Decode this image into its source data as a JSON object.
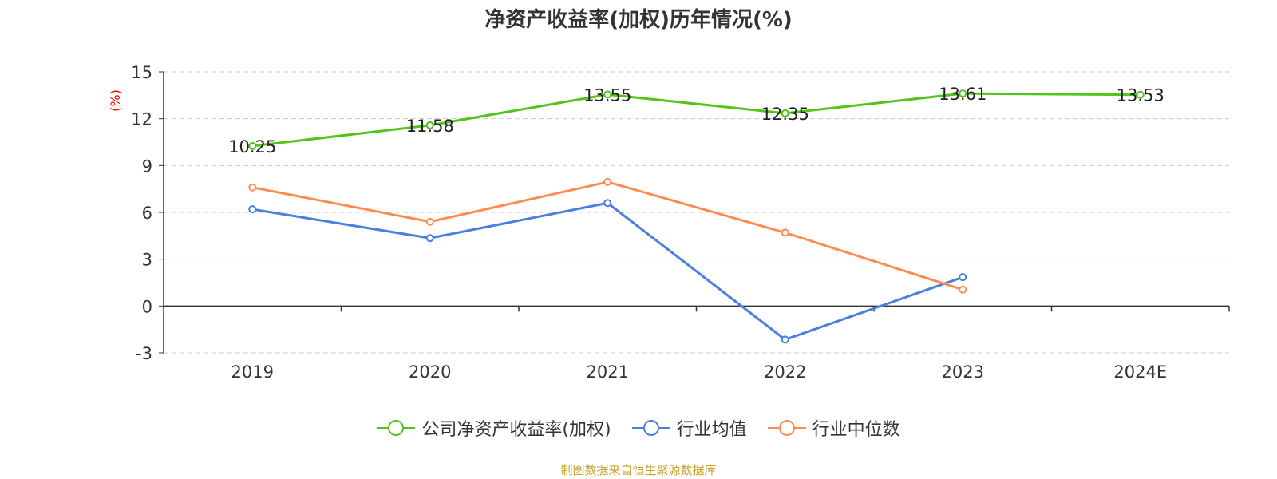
{
  "chart_data": {
    "type": "line",
    "title": "净资产收益率(加权)历年情况(%)",
    "ylabel": "(%)",
    "categories": [
      "2019",
      "2020",
      "2021",
      "2022",
      "2023",
      "2024E"
    ],
    "ylim": [
      -3,
      15
    ],
    "yticks": [
      -3,
      0,
      3,
      6,
      9,
      12,
      15
    ],
    "grid": true,
    "legend_position": "bottom",
    "series": [
      {
        "name": "公司净资产收益率(加权)",
        "color": "#52c41a",
        "values": [
          10.25,
          11.58,
          13.55,
          12.35,
          13.61,
          13.53
        ],
        "labels": [
          "10.25",
          "11.58",
          "13.55",
          "12.35",
          "13.61",
          "13.53"
        ]
      },
      {
        "name": "行业均值",
        "color": "#4a7fe0",
        "values": [
          6.2,
          4.35,
          6.6,
          -2.15,
          1.85,
          null
        ]
      },
      {
        "name": "行业中位数",
        "color": "#ff8c55",
        "values": [
          7.6,
          5.4,
          7.95,
          4.7,
          1.05,
          null
        ]
      }
    ]
  },
  "source": "制图数据来自恒生聚源数据库"
}
